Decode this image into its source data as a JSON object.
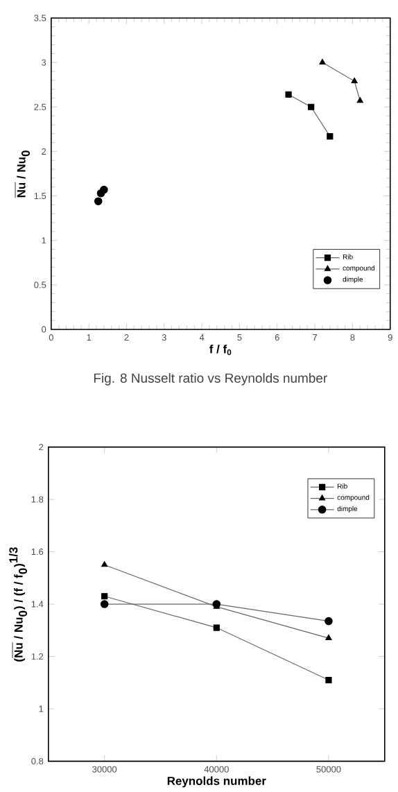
{
  "chart_data": [
    {
      "type": "line",
      "xlabel": "f / f$_{0}$",
      "ylabel": "\\overline{\\textbf{Nu}}\\textbf{ / Nu}_{\\textbf{0}}",
      "annotations": [
        "Fig. 8 Nusselt ratio vs Reynolds number"
      ],
      "xlim": [
        0,
        9
      ],
      "ylim": [
        0,
        3.5
      ],
      "xticks": [
        0,
        1,
        2,
        3,
        4,
        5,
        6,
        7,
        8,
        9
      ],
      "yticks": [
        0,
        0.5,
        1,
        1.5,
        2,
        2.5,
        3,
        3.5
      ],
      "legend": "bottom right",
      "line_style": "solid",
      "grid": false,
      "series": [
        {
          "name": "Rib",
          "color": "#000000",
          "marker": "square",
          "x": [
            6.3,
            6.9,
            7.4
          ],
          "values": [
            2.64,
            2.5,
            2.17
          ]
        },
        {
          "name": "compound",
          "color": "#000000",
          "marker": "triangle",
          "x": [
            7.2,
            8.05,
            8.2
          ],
          "values": [
            3.0,
            2.79,
            2.57
          ]
        },
        {
          "name": "dimple",
          "type": "scatter",
          "color": "#000000",
          "marker": "circle",
          "x": [
            1.25,
            1.32,
            1.4
          ],
          "values": [
            1.44,
            1.53,
            1.57
          ]
        }
      ]
    },
    {
      "type": "line",
      "xlabel": "Reynolds number",
      "ylabel": "\\textbf{(}\\overline{\\textbf{Nu}}\\textbf{ / Nu}_{\\textbf{0}}\\textbf{) / (f / f}_{\\textbf{0}}\\textbf{)}^{\\textbf{1/3}}",
      "xlim": [
        25000,
        55000
      ],
      "ylim": [
        0.8,
        2
      ],
      "xticks": [
        30000,
        40000,
        50000
      ],
      "yticks": [
        0.8,
        1,
        1.2,
        1.4,
        1.6,
        1.8,
        2
      ],
      "legend": "top right",
      "line_style": "solid",
      "grid": false,
      "x": [
        30000,
        40000,
        50000
      ],
      "series": [
        {
          "name": "Rib",
          "color": "#000000",
          "marker": "square",
          "values": [
            1.43,
            1.31,
            1.11
          ]
        },
        {
          "name": "compound",
          "color": "#000000",
          "marker": "triangle",
          "values": [
            1.55,
            1.39,
            1.27
          ]
        },
        {
          "name": "dimple",
          "color": "#000000",
          "marker": "circle",
          "values": [
            1.4,
            1.4,
            1.335
          ]
        }
      ]
    }
  ]
}
